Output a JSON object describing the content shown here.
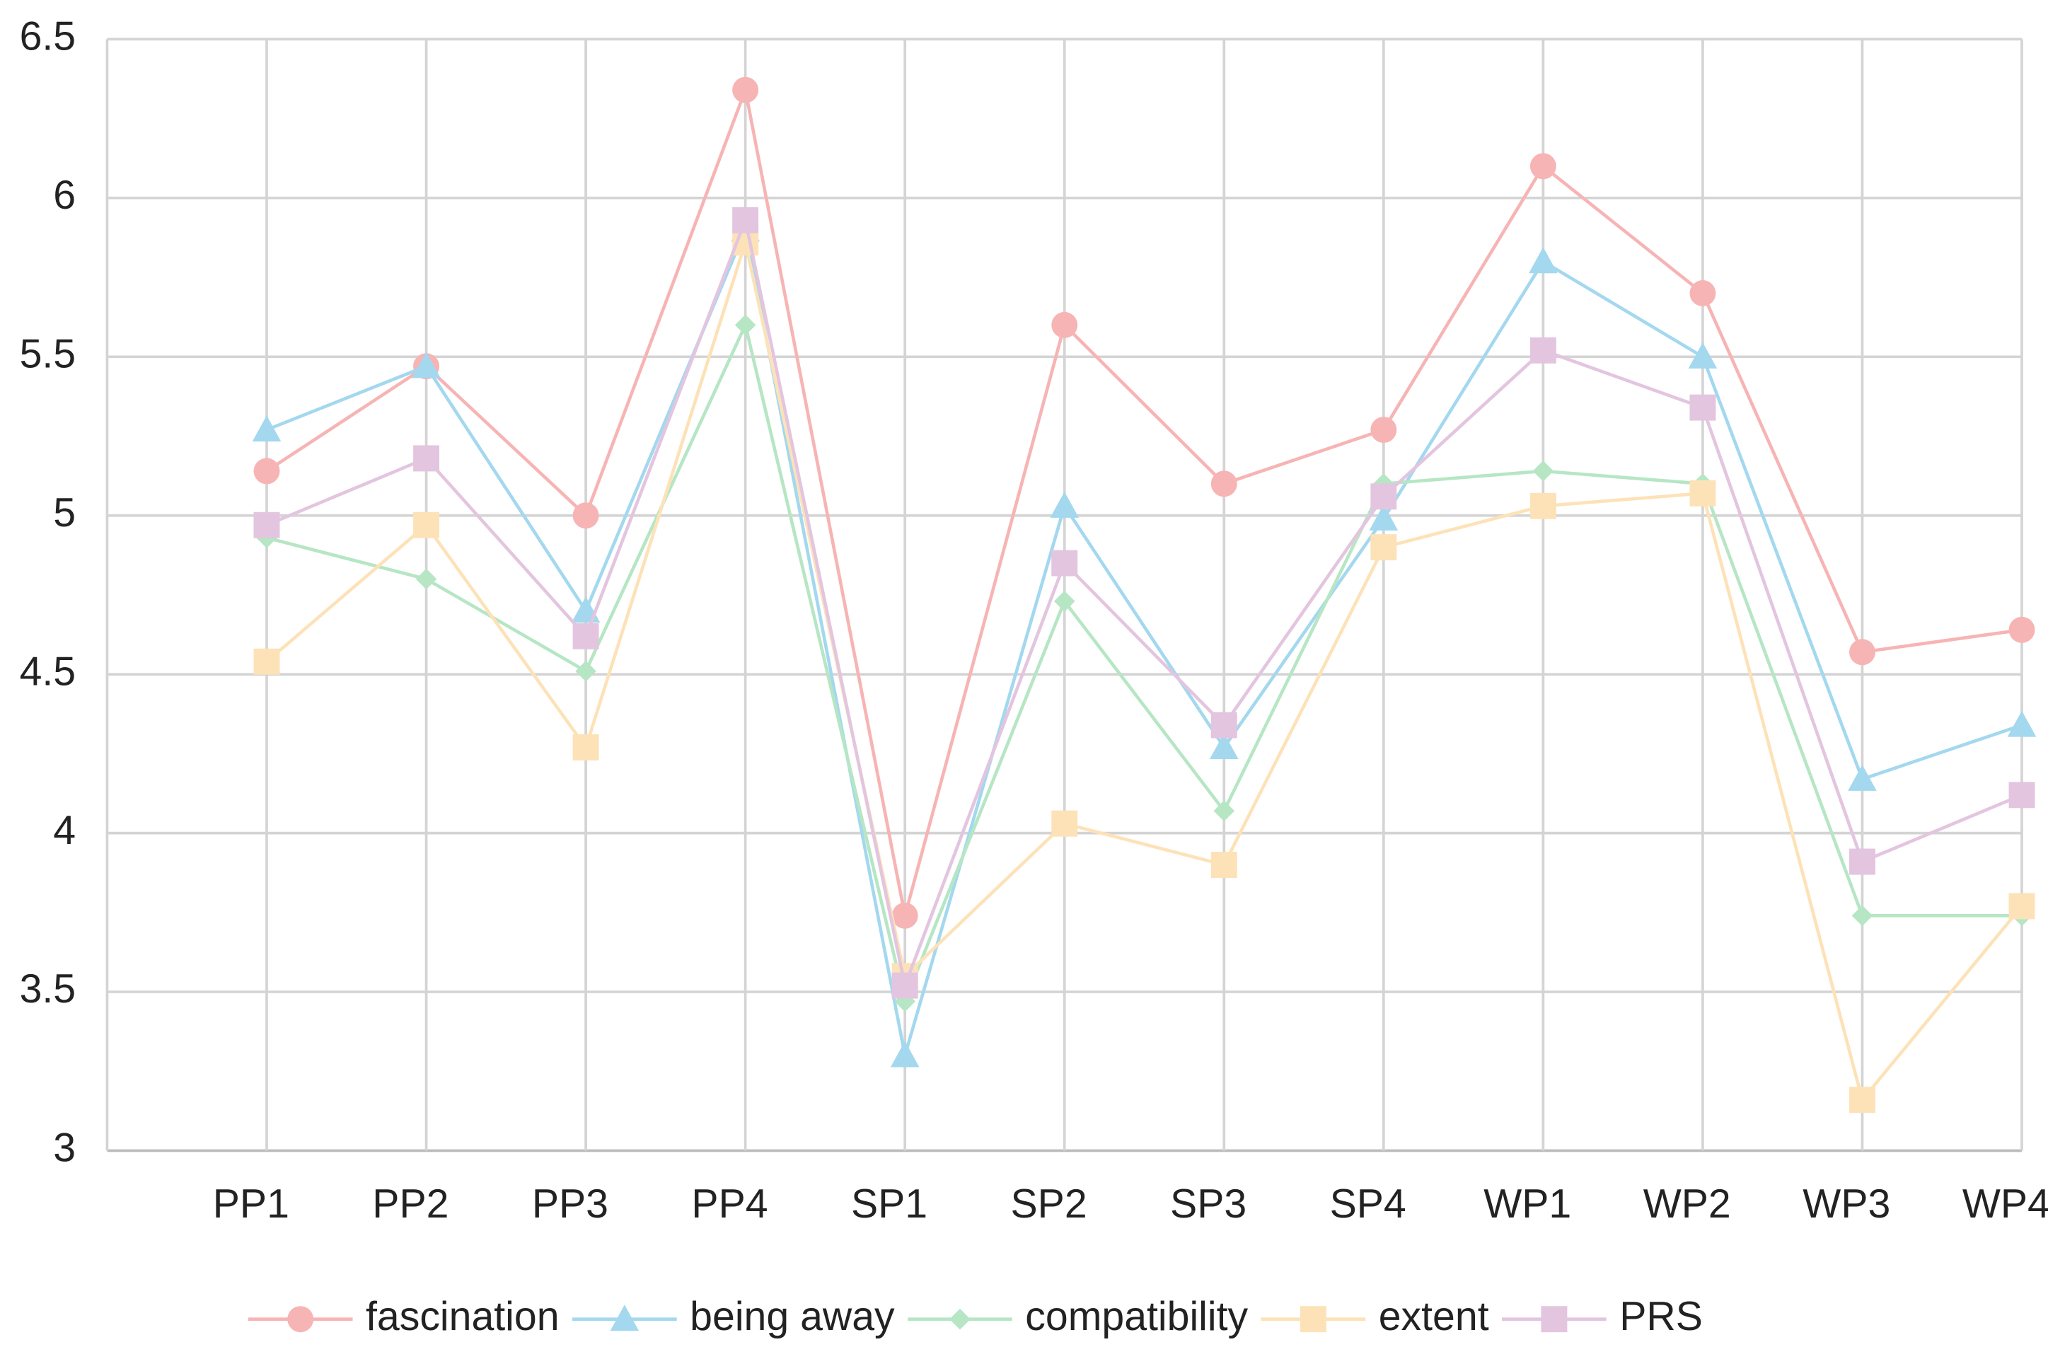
{
  "chart_data": {
    "type": "line",
    "categories": [
      "PP1",
      "PP2",
      "PP3",
      "PP4",
      "SP1",
      "SP2",
      "SP3",
      "SP4",
      "WP1",
      "WP2",
      "WP3",
      "WP4"
    ],
    "series": [
      {
        "name": "fascination",
        "color": "#f7b4b4",
        "marker": "circle",
        "values": [
          5.14,
          5.47,
          5.0,
          6.34,
          3.74,
          5.6,
          5.1,
          5.27,
          6.1,
          5.7,
          4.57,
          4.64
        ]
      },
      {
        "name": "being away",
        "color": "#a3d8ef",
        "marker": "triangle",
        "values": [
          5.27,
          5.47,
          4.7,
          5.9,
          3.3,
          5.03,
          4.27,
          4.99,
          5.8,
          5.5,
          4.17,
          4.34
        ]
      },
      {
        "name": "compatibility",
        "color": "#b6e6c4",
        "marker": "diamond",
        "values": [
          4.93,
          4.8,
          4.51,
          5.6,
          3.47,
          4.73,
          4.07,
          5.1,
          5.14,
          5.1,
          3.74,
          3.74
        ]
      },
      {
        "name": "extent",
        "color": "#fde2b8",
        "marker": "square",
        "values": [
          4.54,
          4.97,
          4.27,
          5.86,
          3.55,
          4.03,
          3.9,
          4.9,
          5.03,
          5.07,
          3.16,
          3.77
        ]
      },
      {
        "name": "PRS",
        "color": "#e3c5df",
        "marker": "square",
        "values": [
          4.97,
          5.18,
          4.62,
          5.93,
          3.52,
          4.85,
          4.34,
          5.06,
          5.52,
          5.34,
          3.91,
          4.12
        ]
      }
    ],
    "ylim": [
      3,
      6.5
    ],
    "yticks": [
      3,
      3.5,
      4,
      4.5,
      5,
      5.5,
      6,
      6.5
    ],
    "grid": true,
    "legend": "bottom"
  }
}
